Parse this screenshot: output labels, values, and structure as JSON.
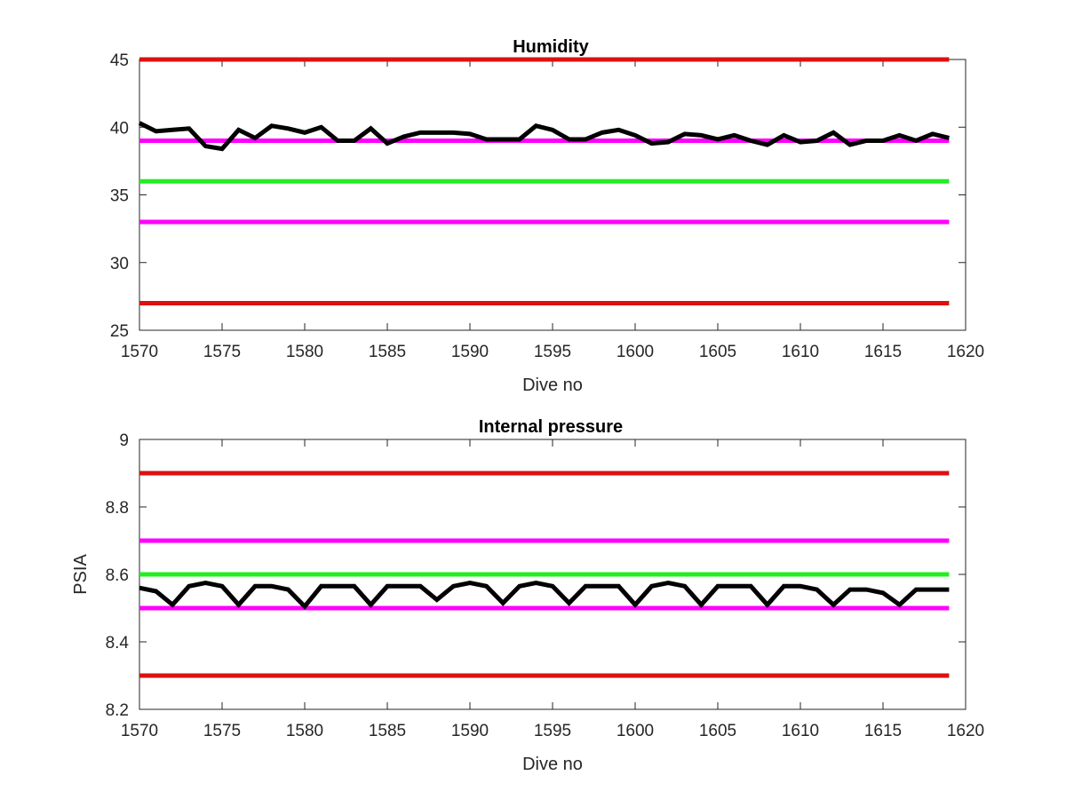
{
  "chart_data": [
    {
      "type": "line",
      "title": "Humidity",
      "xlabel": "Dive no",
      "ylabel": "",
      "xlim": [
        1570,
        1620
      ],
      "ylim": [
        25,
        45
      ],
      "xticks": [
        "1570",
        "1575",
        "1580",
        "1585",
        "1590",
        "1595",
        "1600",
        "1605",
        "1610",
        "1615",
        "1620"
      ],
      "yticks": [
        "25",
        "30",
        "35",
        "40",
        "45"
      ],
      "grid": false,
      "reference_lines": [
        {
          "y": 45,
          "color": "#dd1111"
        },
        {
          "y": 39,
          "color": "#ff00ff"
        },
        {
          "y": 36,
          "color": "#22ee22"
        },
        {
          "y": 33,
          "color": "#ff00ff"
        },
        {
          "y": 27,
          "color": "#dd1111"
        }
      ],
      "series": [
        {
          "color": "#000000",
          "x": [
            1570,
            1571,
            1572,
            1573,
            1574,
            1575,
            1576,
            1577,
            1578,
            1579,
            1580,
            1581,
            1582,
            1583,
            1584,
            1585,
            1586,
            1587,
            1588,
            1589,
            1590,
            1591,
            1592,
            1593,
            1594,
            1595,
            1596,
            1597,
            1598,
            1599,
            1600,
            1601,
            1602,
            1603,
            1604,
            1605,
            1606,
            1607,
            1608,
            1609,
            1610,
            1611,
            1612,
            1613,
            1614,
            1615,
            1616,
            1617,
            1618,
            1619
          ],
          "values": [
            40.3,
            39.7,
            39.8,
            39.9,
            38.6,
            38.4,
            39.8,
            39.2,
            40.1,
            39.9,
            39.6,
            40.0,
            39.0,
            39.0,
            39.9,
            38.8,
            39.3,
            39.6,
            39.6,
            39.6,
            39.5,
            39.1,
            39.1,
            39.1,
            40.1,
            39.8,
            39.1,
            39.1,
            39.6,
            39.8,
            39.4,
            38.8,
            38.9,
            39.5,
            39.4,
            39.1,
            39.4,
            39.0,
            38.7,
            39.4,
            38.9,
            39.0,
            39.6,
            38.7,
            39.0,
            39.0,
            39.4,
            39.0,
            39.5,
            39.2
          ]
        }
      ]
    },
    {
      "type": "line",
      "title": "Internal pressure",
      "xlabel": "Dive no",
      "ylabel": "PSIA",
      "xlim": [
        1570,
        1620
      ],
      "ylim": [
        8.2,
        9
      ],
      "xticks": [
        "1570",
        "1575",
        "1580",
        "1585",
        "1590",
        "1595",
        "1600",
        "1605",
        "1610",
        "1615",
        "1620"
      ],
      "yticks": [
        "8.2",
        "8.4",
        "8.6",
        "8.8",
        "9"
      ],
      "grid": false,
      "reference_lines": [
        {
          "y": 8.9,
          "color": "#dd1111"
        },
        {
          "y": 8.7,
          "color": "#ff00ff"
        },
        {
          "y": 8.6,
          "color": "#22ee22"
        },
        {
          "y": 8.5,
          "color": "#ff00ff"
        },
        {
          "y": 8.3,
          "color": "#dd1111"
        }
      ],
      "series": [
        {
          "color": "#000000",
          "x": [
            1570,
            1571,
            1572,
            1573,
            1574,
            1575,
            1576,
            1577,
            1578,
            1579,
            1580,
            1581,
            1582,
            1583,
            1584,
            1585,
            1586,
            1587,
            1588,
            1589,
            1590,
            1591,
            1592,
            1593,
            1594,
            1595,
            1596,
            1597,
            1598,
            1599,
            1600,
            1601,
            1602,
            1603,
            1604,
            1605,
            1606,
            1607,
            1608,
            1609,
            1610,
            1611,
            1612,
            1613,
            1614,
            1615,
            1616,
            1617,
            1618,
            1619
          ],
          "values": [
            8.56,
            8.55,
            8.51,
            8.565,
            8.575,
            8.565,
            8.51,
            8.565,
            8.565,
            8.555,
            8.505,
            8.565,
            8.565,
            8.565,
            8.51,
            8.565,
            8.565,
            8.565,
            8.525,
            8.565,
            8.575,
            8.565,
            8.515,
            8.565,
            8.575,
            8.565,
            8.515,
            8.565,
            8.565,
            8.565,
            8.51,
            8.565,
            8.575,
            8.565,
            8.51,
            8.565,
            8.565,
            8.565,
            8.51,
            8.565,
            8.565,
            8.555,
            8.51,
            8.555,
            8.555,
            8.545,
            8.51,
            8.555,
            8.555,
            8.555
          ]
        }
      ]
    }
  ]
}
